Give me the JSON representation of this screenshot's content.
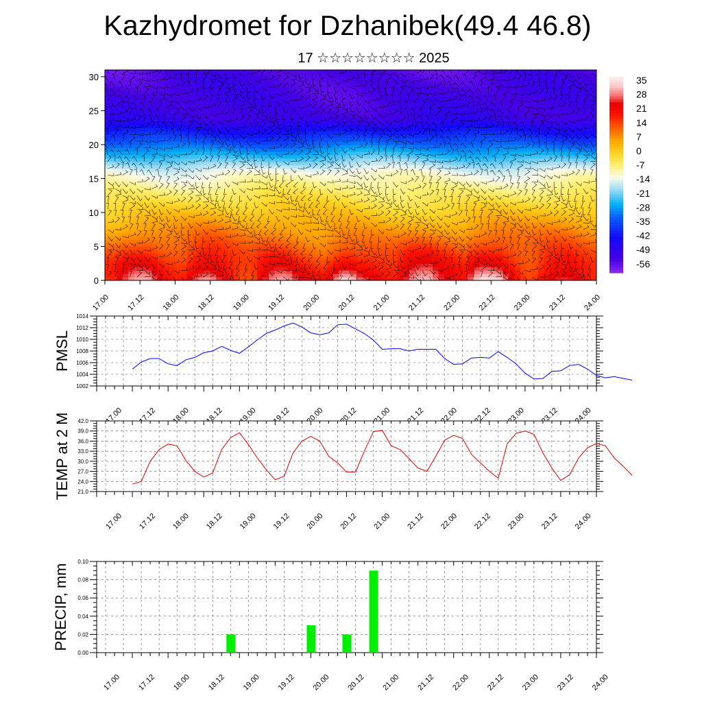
{
  "title": "Kazhydromet for Dzhanibek(49.4 46.8)",
  "subtitle": "17 ☆☆☆☆☆☆☆☆ 2025",
  "x_tick_labels": [
    "17.00",
    "17.12",
    "18.00",
    "18.12",
    "19.00",
    "19.12",
    "20.00",
    "20.12",
    "21.00",
    "21.12",
    "22.00",
    "22.12",
    "23.00",
    "23.12",
    "24.00"
  ],
  "chart_data": [
    {
      "type": "heatmap",
      "name": "temperature cross-section with wind barbs",
      "y_ticks": [
        0,
        5,
        10,
        15,
        20,
        25,
        30
      ],
      "ylim": [
        0,
        31
      ],
      "xlim_hours": [
        0,
        168
      ],
      "colorbar": {
        "labels": [
          35,
          28,
          21,
          14,
          7,
          0,
          -7,
          -14,
          -21,
          -28,
          -35,
          -42,
          -49,
          -56
        ],
        "range": [
          -63,
          38
        ]
      }
    },
    {
      "type": "line",
      "ylabel": "PMSL",
      "color": "#0000ff",
      "ylim": [
        1002,
        1014
      ],
      "y_ticks": [
        1002,
        1004,
        1006,
        1008,
        1010,
        1012,
        1014
      ],
      "step_hours": 3,
      "values": [
        1004.9,
        1006.1,
        1006.7,
        1006.7,
        1005.8,
        1005.5,
        1006.5,
        1006.9,
        1007.7,
        1008.0,
        1008.8,
        1008.1,
        1007.6,
        1008.7,
        1009.9,
        1011.0,
        1011.6,
        1012.3,
        1012.8,
        1012.1,
        1011.1,
        1010.8,
        1011.1,
        1012.5,
        1012.6,
        1011.8,
        1011.0,
        1009.9,
        1008.3,
        1008.4,
        1008.4,
        1008.0,
        1008.3,
        1008.3,
        1008.3,
        1006.7,
        1005.7,
        1005.8,
        1006.8,
        1006.9,
        1006.8,
        1007.9,
        1006.9,
        1005.8,
        1004.2,
        1003.2,
        1003.3,
        1004.5,
        1004.6,
        1005.5,
        1005.7,
        1004.9,
        1003.8,
        1003.4,
        1003.6,
        1003.3,
        1003.0
      ]
    },
    {
      "type": "line",
      "ylabel": "TEMP at 2 M",
      "color": "#e00000",
      "ylim": [
        21.0,
        42.0
      ],
      "y_ticks": [
        "21.0",
        "24.0",
        "27.0",
        "30.0",
        "33.0",
        "36.0",
        "39.0",
        "42.0"
      ],
      "step_hours": 3,
      "values": [
        23.2,
        24.0,
        30.0,
        33.5,
        35.1,
        34.6,
        30.2,
        27.0,
        25.3,
        26.5,
        33.5,
        37.0,
        38.5,
        35.0,
        31.0,
        27.5,
        24.5,
        25.5,
        32.5,
        36.0,
        37.4,
        36.0,
        31.5,
        29.5,
        26.8,
        26.8,
        33.0,
        38.8,
        39.2,
        34.6,
        33.5,
        30.8,
        28.0,
        27.0,
        31.5,
        36.3,
        37.7,
        36.8,
        32.0,
        29.5,
        27.0,
        25.0,
        35.2,
        38.3,
        39.0,
        38.0,
        32.5,
        28.0,
        24.3,
        26.0,
        31.0,
        34.0,
        35.3,
        34.6,
        31.0,
        28.5,
        25.8
      ]
    },
    {
      "type": "bar",
      "ylabel": "PRECIP, mm",
      "color": "#00ee00",
      "ylim": [
        0,
        0.1
      ],
      "y_ticks": [
        "0.00",
        "0.02",
        "0.04",
        "0.06",
        "0.08",
        "0.10"
      ],
      "bars": [
        {
          "hour": 45,
          "value": 0.02
        },
        {
          "hour": 72,
          "value": 0.03
        },
        {
          "hour": 84,
          "value": 0.02
        },
        {
          "hour": 93,
          "value": 0.09
        }
      ]
    }
  ]
}
